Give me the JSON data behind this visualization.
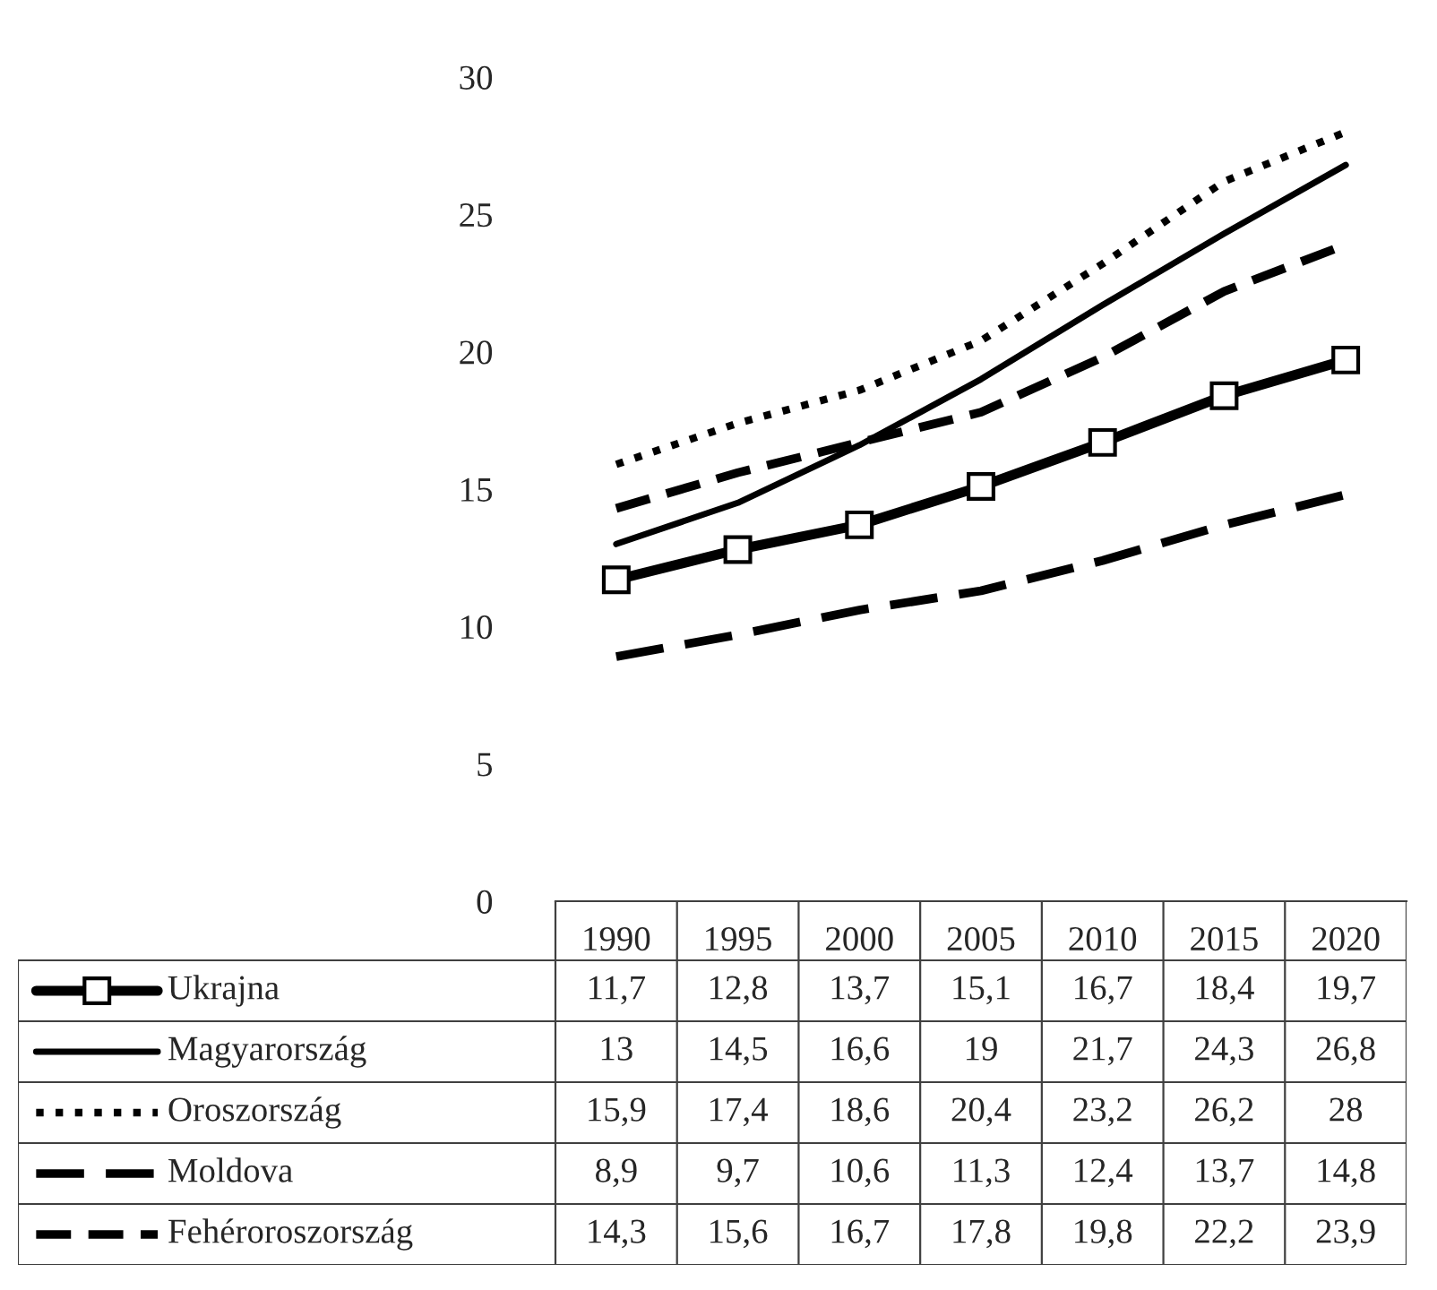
{
  "chart_data": {
    "type": "line",
    "categories": [
      "1990",
      "1995",
      "2000",
      "2005",
      "2010",
      "2015",
      "2020"
    ],
    "ylim": [
      0,
      30
    ],
    "yticks": [
      0,
      5,
      10,
      15,
      20,
      25,
      30
    ],
    "grid": false,
    "legend": "bottom",
    "series": [
      {
        "name": "Ukrajna",
        "color": "#000000",
        "line_style": "solid",
        "marker": "square",
        "values": [
          11.7,
          12.8,
          13.7,
          15.1,
          16.7,
          18.4,
          19.7
        ],
        "value_labels": [
          "11,7",
          "12,8",
          "13,7",
          "15,1",
          "16,7",
          "18,4",
          "19,7"
        ]
      },
      {
        "name": "Magyarország",
        "color": "#000000",
        "line_style": "solid",
        "marker": "none",
        "values": [
          13,
          14.5,
          16.6,
          19,
          21.7,
          24.3,
          26.8
        ],
        "value_labels": [
          "13",
          "14,5",
          "16,6",
          "19",
          "21,7",
          "24,3",
          "26,8"
        ]
      },
      {
        "name": "Oroszország",
        "color": "#000000",
        "line_style": "dotted",
        "marker": "none",
        "values": [
          15.9,
          17.4,
          18.6,
          20.4,
          23.2,
          26.2,
          28
        ],
        "value_labels": [
          "15,9",
          "17,4",
          "18,6",
          "20,4",
          "23,2",
          "26,2",
          "28"
        ]
      },
      {
        "name": "Moldova",
        "color": "#000000",
        "line_style": "dashed",
        "marker": "none",
        "values": [
          8.9,
          9.7,
          10.6,
          11.3,
          12.4,
          13.7,
          14.8
        ],
        "value_labels": [
          "8,9",
          "9,7",
          "10,6",
          "11,3",
          "12,4",
          "13,7",
          "14,8"
        ]
      },
      {
        "name": "Fehéroroszország",
        "color": "#000000",
        "line_style": "dashed",
        "marker": "none",
        "values": [
          14.3,
          15.6,
          16.7,
          17.8,
          19.8,
          22.2,
          23.9
        ],
        "value_labels": [
          "14,3",
          "15,6",
          "16,7",
          "17,8",
          "19,8",
          "22,2",
          "23,9"
        ]
      }
    ]
  }
}
